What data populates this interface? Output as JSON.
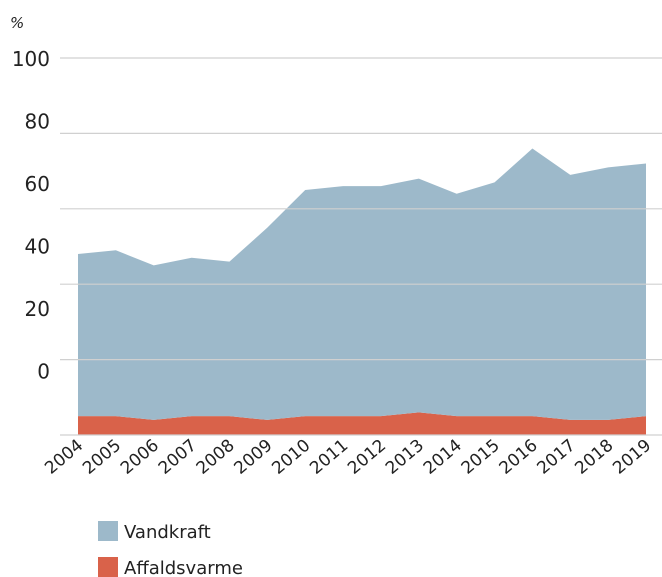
{
  "chart_data": {
    "type": "stacked_area",
    "y_label": "%",
    "categories": [
      "2004",
      "2005",
      "2006",
      "2007",
      "2008",
      "2009",
      "2010",
      "2011",
      "2012",
      "2013",
      "2014",
      "2015",
      "2016",
      "2017",
      "2018",
      "2019"
    ],
    "series": [
      {
        "name": "Vandkraft",
        "color": "#9db9ca",
        "values": [
          43,
          44,
          41,
          42,
          41,
          51,
          60,
          61,
          61,
          62,
          59,
          62,
          71,
          65,
          67,
          67
        ]
      },
      {
        "name": "Affaldsvarme",
        "color": "#d9624a",
        "values": [
          5,
          5,
          4,
          5,
          5,
          4,
          5,
          5,
          5,
          6,
          5,
          5,
          5,
          4,
          4,
          5
        ]
      }
    ],
    "ylim": [
      0,
      100
    ],
    "yticks": [
      0,
      20,
      40,
      60,
      80,
      100
    ],
    "grid": true
  }
}
